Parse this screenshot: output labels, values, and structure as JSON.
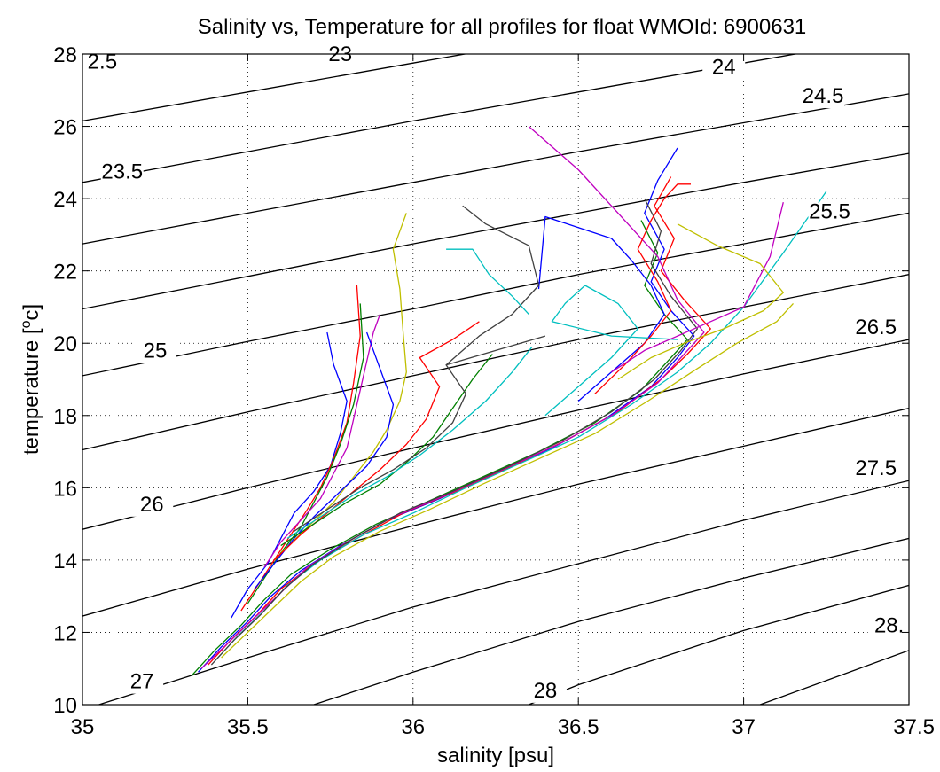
{
  "chart_data": {
    "type": "line",
    "title": "Salinity vs, Temperature for all profiles for float WMOId: 6900631",
    "xlabel": "salinity [psu]",
    "ylabel_main": "temperature [",
    "ylabel_sup": "o",
    "ylabel_end": "c]",
    "xlim": [
      35,
      37.5
    ],
    "ylim": [
      10,
      28
    ],
    "xticks": [
      35,
      35.5,
      36,
      36.5,
      37,
      37.5
    ],
    "xtick_labels": [
      "35",
      "35.5",
      "36",
      "36.5",
      "37",
      "37.5"
    ],
    "yticks": [
      10,
      12,
      14,
      16,
      18,
      20,
      22,
      24,
      26,
      28
    ],
    "ytick_labels": [
      "10",
      "12",
      "14",
      "16",
      "18",
      "20",
      "22",
      "24",
      "26",
      "28"
    ],
    "grid": "dotted",
    "contour_labels": [
      {
        "text": "2.5",
        "s": 35.06,
        "t": 27.6
      },
      {
        "text": "23",
        "s": 35.78,
        "t": 27.8
      },
      {
        "text": "23.5",
        "s": 35.12,
        "t": 24.55
      },
      {
        "text": "24",
        "s": 36.94,
        "t": 27.45
      },
      {
        "text": "24.5",
        "s": 37.24,
        "t": 26.65
      },
      {
        "text": "25",
        "s": 35.22,
        "t": 19.6
      },
      {
        "text": "25.5",
        "s": 37.26,
        "t": 23.45
      },
      {
        "text": "26",
        "s": 35.21,
        "t": 15.35
      },
      {
        "text": "26.5",
        "s": 37.4,
        "t": 20.25
      },
      {
        "text": "27",
        "s": 35.18,
        "t": 10.45
      },
      {
        "text": "27.5",
        "s": 37.4,
        "t": 16.35
      },
      {
        "text": "28",
        "s": 36.4,
        "t": 10.2
      },
      {
        "text": "28.",
        "s": 37.44,
        "t": 12.0
      }
    ],
    "isopycnals": [
      {
        "sigma": 23.0,
        "s": [
          35.0,
          35.5,
          36.0,
          36.5,
          37.0
        ],
        "t": [
          28.8,
          29.6,
          30.4,
          31.2,
          32.0
        ]
      },
      {
        "sigma": 23.5,
        "s": [
          35.0,
          35.5,
          36.0,
          36.5,
          37.0,
          37.5
        ],
        "t": [
          26.15,
          26.95,
          27.75,
          28.55,
          29.35,
          30.15
        ]
      },
      {
        "sigma": 24.0,
        "s": [
          35.0,
          35.5,
          36.0,
          36.5,
          37.0,
          37.5
        ],
        "t": [
          24.45,
          25.3,
          26.15,
          26.95,
          27.75,
          28.55
        ]
      },
      {
        "sigma": 24.5,
        "s": [
          35.0,
          35.5,
          36.0,
          36.5,
          37.0,
          37.5
        ],
        "t": [
          22.75,
          23.6,
          24.45,
          25.3,
          26.1,
          26.9
        ]
      },
      {
        "sigma": 25.0,
        "s": [
          35.0,
          35.5,
          36.0,
          36.5,
          37.0,
          37.5
        ],
        "t": [
          20.95,
          21.85,
          22.75,
          23.6,
          24.45,
          25.25
        ]
      },
      {
        "sigma": 25.5,
        "s": [
          35.0,
          35.5,
          36.0,
          36.5,
          37.0,
          37.5
        ],
        "t": [
          19.1,
          20.05,
          20.95,
          21.9,
          22.75,
          23.6
        ]
      },
      {
        "sigma": 26.0,
        "s": [
          35.0,
          35.5,
          36.0,
          36.5,
          37.0,
          37.5
        ],
        "t": [
          17.05,
          18.1,
          19.1,
          20.1,
          21.0,
          21.9
        ]
      },
      {
        "sigma": 26.5,
        "s": [
          35.0,
          35.5,
          36.0,
          36.5,
          37.0,
          37.5
        ],
        "t": [
          14.85,
          16.0,
          17.1,
          18.15,
          19.15,
          20.1
        ]
      },
      {
        "sigma": 27.0,
        "s": [
          35.0,
          35.5,
          36.0,
          36.5,
          37.0,
          37.5
        ],
        "t": [
          12.45,
          13.75,
          14.95,
          16.1,
          17.15,
          18.2
        ]
      },
      {
        "sigma": 27.5,
        "s": [
          35.05,
          35.5,
          36.0,
          36.5,
          37.0,
          37.5
        ],
        "t": [
          10.0,
          11.3,
          12.7,
          13.9,
          15.1,
          16.2
        ]
      },
      {
        "sigma": 28.0,
        "s": [
          35.7,
          36.0,
          36.5,
          37.0,
          37.5
        ],
        "t": [
          10.0,
          10.9,
          12.3,
          13.5,
          14.6
        ]
      },
      {
        "sigma": 28.5,
        "s": [
          36.35,
          36.5,
          37.0,
          37.5
        ],
        "t": [
          10.0,
          10.55,
          12.05,
          13.3
        ]
      },
      {
        "sigma": 29.0,
        "s": [
          37.05,
          37.5
        ],
        "t": [
          10.0,
          11.5
        ]
      }
    ],
    "series": [
      {
        "color": "#0000ff",
        "s": [
          35.35,
          35.42,
          35.5,
          35.57,
          35.66,
          35.78,
          35.92,
          36.08,
          36.25,
          36.42,
          36.58,
          36.72,
          36.8,
          36.85,
          36.78,
          36.72,
          36.76,
          36.7,
          36.74,
          36.8
        ],
        "t": [
          10.9,
          11.6,
          12.3,
          13.0,
          13.7,
          14.4,
          15.1,
          15.7,
          16.4,
          17.1,
          17.9,
          18.8,
          19.6,
          20.2,
          20.9,
          21.7,
          22.6,
          23.6,
          24.5,
          25.4
        ]
      },
      {
        "color": "#ff0000",
        "s": [
          35.38,
          35.45,
          35.53,
          35.6,
          35.7,
          35.83,
          35.97,
          36.13,
          36.3,
          36.46,
          36.62,
          36.75,
          36.83,
          36.9,
          36.82,
          36.75,
          36.79,
          36.73,
          36.78
        ],
        "t": [
          11.1,
          11.8,
          12.5,
          13.2,
          13.9,
          14.6,
          15.3,
          15.9,
          16.6,
          17.3,
          18.1,
          19.0,
          19.7,
          20.4,
          21.2,
          22.0,
          22.9,
          23.8,
          24.6
        ]
      },
      {
        "color": "#008000",
        "s": [
          35.33,
          35.4,
          35.48,
          35.55,
          35.63,
          35.75,
          35.89,
          36.04,
          36.21,
          36.38,
          36.55,
          36.69,
          36.77,
          36.83,
          36.76,
          36.7,
          36.74,
          36.69
        ],
        "t": [
          10.8,
          11.5,
          12.2,
          12.9,
          13.6,
          14.3,
          15.0,
          15.6,
          16.3,
          17.0,
          17.8,
          18.7,
          19.5,
          20.1,
          20.8,
          21.6,
          22.5,
          23.4
        ]
      },
      {
        "color": "#00bfbf",
        "s": [
          35.4,
          35.47,
          35.55,
          35.62,
          35.72,
          35.85,
          36.0,
          36.16,
          36.33,
          36.5,
          36.66,
          36.8,
          36.9,
          37.0,
          37.12,
          37.25
        ],
        "t": [
          11.2,
          11.9,
          12.6,
          13.3,
          14.0,
          14.7,
          15.3,
          16.0,
          16.7,
          17.4,
          18.3,
          19.2,
          20.0,
          21.0,
          22.5,
          24.2
        ]
      },
      {
        "color": "#bf00bf",
        "s": [
          35.36,
          35.44,
          35.52,
          35.6,
          35.68,
          35.8,
          35.94,
          36.1,
          36.27,
          36.44,
          36.6,
          36.74,
          36.82,
          36.88,
          36.8,
          36.74,
          36.5,
          36.35
        ],
        "t": [
          11.0,
          11.7,
          12.4,
          13.1,
          13.8,
          14.5,
          15.2,
          15.8,
          16.5,
          17.2,
          18.0,
          18.9,
          19.7,
          20.3,
          21.2,
          22.4,
          24.8,
          26.0
        ]
      },
      {
        "color": "#bfbf00",
        "s": [
          35.42,
          35.5,
          35.58,
          35.66,
          35.76,
          35.9,
          36.05,
          36.21,
          36.38,
          36.55,
          36.71,
          36.86,
          36.98,
          37.1,
          37.15
        ],
        "t": [
          11.3,
          12.0,
          12.7,
          13.4,
          14.1,
          14.8,
          15.4,
          16.1,
          16.8,
          17.5,
          18.4,
          19.3,
          20.0,
          20.6,
          21.1
        ]
      },
      {
        "color": "#404040",
        "s": [
          35.39,
          35.46,
          35.54,
          35.61,
          35.7,
          35.82,
          35.96,
          36.12,
          36.29,
          36.45,
          36.6,
          36.73,
          36.81,
          36.86,
          36.78,
          36.72,
          36.75,
          36.7
        ],
        "t": [
          11.1,
          11.8,
          12.5,
          13.2,
          13.9,
          14.6,
          15.3,
          15.9,
          16.6,
          17.3,
          18.1,
          19.0,
          19.8,
          20.4,
          21.3,
          22.2,
          23.1,
          24.0
        ]
      },
      {
        "color": "#0000ff",
        "s": [
          35.45,
          35.5,
          35.56,
          35.6,
          35.64,
          35.7,
          35.75,
          35.78,
          35.8,
          35.76,
          35.74
        ],
        "t": [
          12.4,
          13.2,
          13.9,
          14.6,
          15.3,
          15.9,
          16.6,
          17.5,
          18.4,
          19.4,
          20.3
        ]
      },
      {
        "color": "#ff0000",
        "s": [
          35.48,
          35.53,
          35.58,
          35.63,
          35.68,
          35.72,
          35.76,
          35.8,
          35.82,
          35.84,
          35.83
        ],
        "t": [
          12.6,
          13.3,
          14.0,
          14.7,
          15.4,
          16.0,
          16.8,
          17.8,
          18.9,
          20.2,
          21.6
        ]
      },
      {
        "color": "#008000",
        "s": [
          35.5,
          35.55,
          35.6,
          35.66,
          35.7,
          35.74,
          35.78,
          35.82,
          35.85,
          35.84
        ],
        "t": [
          12.8,
          13.5,
          14.2,
          14.9,
          15.6,
          16.3,
          17.2,
          18.3,
          19.6,
          21.1
        ]
      },
      {
        "color": "#bf00bf",
        "s": [
          35.55,
          35.6,
          35.66,
          35.72,
          35.76,
          35.8,
          35.82,
          35.84,
          35.86,
          35.88,
          35.9
        ],
        "t": [
          13.8,
          14.5,
          15.1,
          15.7,
          16.4,
          17.1,
          17.9,
          18.7,
          19.5,
          20.3,
          20.8
        ]
      },
      {
        "color": "#bfbf00",
        "s": [
          35.6,
          35.68,
          35.76,
          35.82,
          35.88,
          35.92,
          35.96,
          35.98,
          35.97,
          35.96,
          35.94,
          35.98
        ],
        "t": [
          14.2,
          14.9,
          15.6,
          16.3,
          17.0,
          17.6,
          18.4,
          19.2,
          20.3,
          21.5,
          22.6,
          23.6
        ]
      },
      {
        "color": "#0000ff",
        "s": [
          35.52,
          35.58,
          35.64,
          35.7,
          35.78,
          35.86,
          35.92,
          35.94,
          35.9,
          35.86
        ],
        "t": [
          13.2,
          13.9,
          14.6,
          15.2,
          15.9,
          16.6,
          17.4,
          18.3,
          19.3,
          20.3
        ]
      },
      {
        "color": "#ff0000",
        "s": [
          35.58,
          35.66,
          35.74,
          35.82,
          35.9,
          35.98,
          36.04,
          36.08,
          36.02,
          36.12,
          36.2
        ],
        "t": [
          14.0,
          14.7,
          15.3,
          15.9,
          16.5,
          17.2,
          17.9,
          18.8,
          19.6,
          20.1,
          20.6
        ]
      },
      {
        "color": "#008000",
        "s": [
          35.6,
          35.7,
          35.8,
          35.9,
          35.98,
          36.06,
          36.12,
          36.18,
          36.24
        ],
        "t": [
          14.4,
          15.0,
          15.6,
          16.1,
          16.7,
          17.4,
          18.2,
          19.0,
          19.7
        ]
      },
      {
        "color": "#00bfbf",
        "s": [
          35.62,
          35.72,
          35.82,
          35.92,
          36.02,
          36.12,
          36.22,
          36.3,
          36.36
        ],
        "t": [
          14.6,
          15.2,
          15.8,
          16.3,
          16.9,
          17.6,
          18.4,
          19.2,
          19.9
        ]
      },
      {
        "color": "#404040",
        "s": [
          35.64,
          35.74,
          35.84,
          35.94,
          36.04,
          36.12,
          36.16,
          36.1,
          36.25,
          36.4
        ],
        "t": [
          14.8,
          15.4,
          16.0,
          16.5,
          17.1,
          17.8,
          18.6,
          19.4,
          19.8,
          20.2
        ]
      },
      {
        "color": "#0000ff",
        "s": [
          36.5,
          36.6,
          36.7,
          36.76,
          36.72,
          36.66,
          36.6,
          36.4,
          36.38
        ],
        "t": [
          18.4,
          19.2,
          20.0,
          20.8,
          21.6,
          22.3,
          22.9,
          23.5,
          21.5
        ]
      },
      {
        "color": "#00bfbf",
        "s": [
          36.4,
          36.5,
          36.6,
          36.68,
          36.62,
          36.52,
          36.46,
          36.42,
          36.6,
          36.8
        ],
        "t": [
          18.0,
          18.8,
          19.6,
          20.4,
          21.1,
          21.6,
          21.1,
          20.6,
          20.2,
          20.1
        ]
      },
      {
        "color": "#ff0000",
        "s": [
          36.55,
          36.64,
          36.72,
          36.78,
          36.74,
          36.68,
          36.72,
          36.76,
          36.8,
          36.84
        ],
        "t": [
          18.6,
          19.4,
          20.2,
          20.9,
          21.7,
          22.6,
          23.4,
          24.0,
          24.4,
          24.4
        ]
      },
      {
        "color": "#404040",
        "s": [
          36.1,
          36.2,
          36.3,
          36.38,
          36.35,
          36.22,
          36.15
        ],
        "t": [
          19.4,
          20.2,
          20.8,
          21.6,
          22.7,
          23.3,
          23.8
        ]
      },
      {
        "color": "#00bfbf",
        "s": [
          36.1,
          36.18,
          36.23,
          36.3,
          36.35
        ],
        "t": [
          22.6,
          22.6,
          21.9,
          21.3,
          20.8
        ]
      },
      {
        "color": "#bf00bf",
        "s": [
          36.6,
          36.7,
          36.8,
          36.9,
          37.0,
          37.08,
          37.12
        ],
        "t": [
          19.2,
          19.8,
          20.2,
          20.6,
          21.0,
          22.4,
          23.9
        ]
      },
      {
        "color": "#bfbf00",
        "s": [
          36.62,
          36.72,
          36.82,
          36.94,
          37.06,
          37.12,
          37.05,
          36.92,
          36.8
        ],
        "t": [
          19.0,
          19.6,
          20.0,
          20.4,
          20.9,
          21.4,
          22.2,
          22.7,
          23.3
        ]
      }
    ]
  }
}
